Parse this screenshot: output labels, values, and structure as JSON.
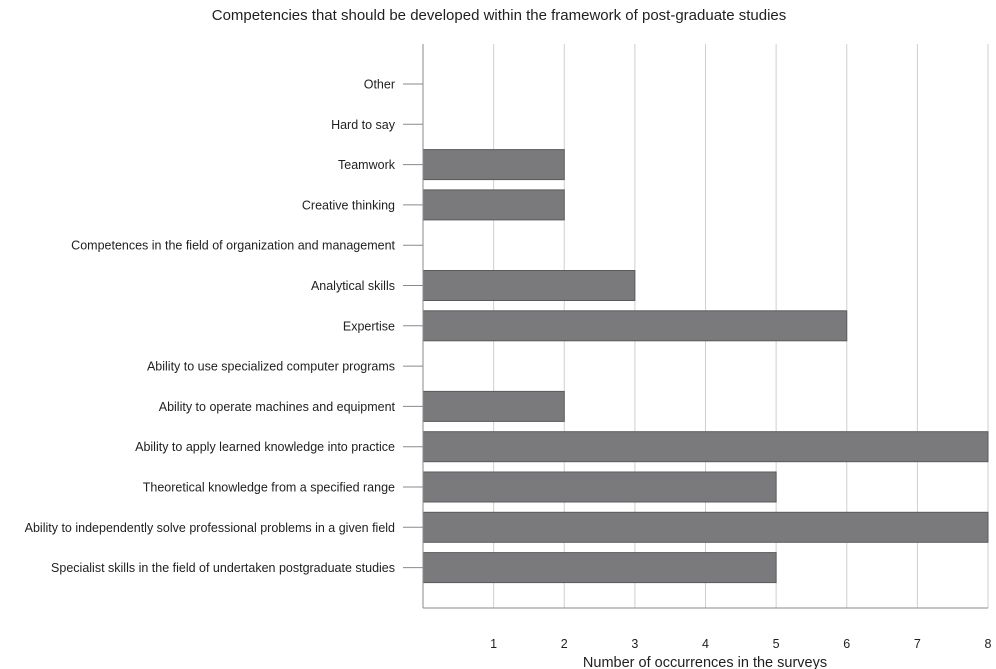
{
  "chart_data": {
    "type": "bar",
    "orientation": "horizontal",
    "title": "Competencies that should be developed within the framework of post-graduate studies",
    "xlabel": "Number of occurrences in the surveys",
    "ylabel": "",
    "xlim": [
      0,
      8
    ],
    "x_ticks": [
      "1",
      "2",
      "3",
      "4",
      "5",
      "6",
      "7",
      "8"
    ],
    "grid": "vertical",
    "bar_color": "#7a7a7d",
    "categories": [
      "Other",
      "Hard to say",
      "Teamwork",
      "Creative thinking",
      "Competences in the field of organization and management",
      "Analytical skills",
      "Expertise",
      "Ability to use specialized computer programs",
      "Ability to operate machines and equipment",
      "Ability to apply learned knowledge into practice",
      "Theoretical knowledge from a specified range",
      "Ability to independently solve professional problems in a given field",
      "Specialist skills in the field of undertaken postgraduate studies"
    ],
    "values": [
      0,
      0,
      2,
      2,
      0,
      3,
      6,
      0,
      2,
      8,
      5,
      8,
      5
    ]
  }
}
